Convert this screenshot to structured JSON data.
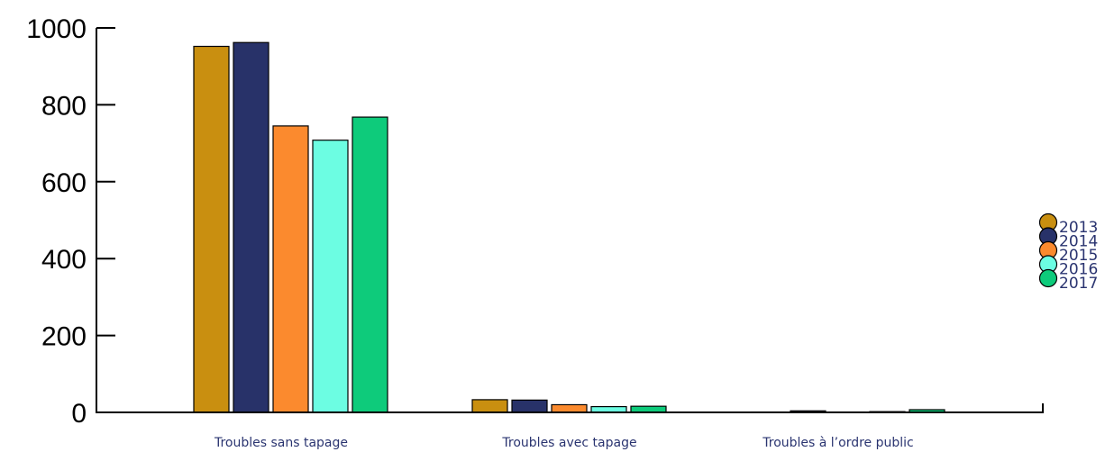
{
  "chart_data": {
    "type": "bar",
    "title": "",
    "xlabel": "",
    "ylabel": "",
    "categories": [
      "Troubles sans tapage",
      "Troubles avec tapage",
      "Troubles à l’ordre public"
    ],
    "series": [
      {
        "name": "2013",
        "color": "#c98f10",
        "values": [
          952,
          33,
          1
        ]
      },
      {
        "name": "2014",
        "color": "#283269",
        "values": [
          962,
          32,
          4
        ]
      },
      {
        "name": "2015",
        "color": "#fb8a2e",
        "values": [
          745,
          20,
          1
        ]
      },
      {
        "name": "2016",
        "color": "#6cfde2",
        "values": [
          708,
          15,
          2
        ]
      },
      {
        "name": "2017",
        "color": "#0ecb7b",
        "values": [
          768,
          16,
          7
        ]
      }
    ],
    "ylim": [
      0,
      1000
    ],
    "yticks": [
      "0",
      "200",
      "400",
      "600",
      "800",
      "1000"
    ],
    "grid": false,
    "legend_position": "right"
  }
}
